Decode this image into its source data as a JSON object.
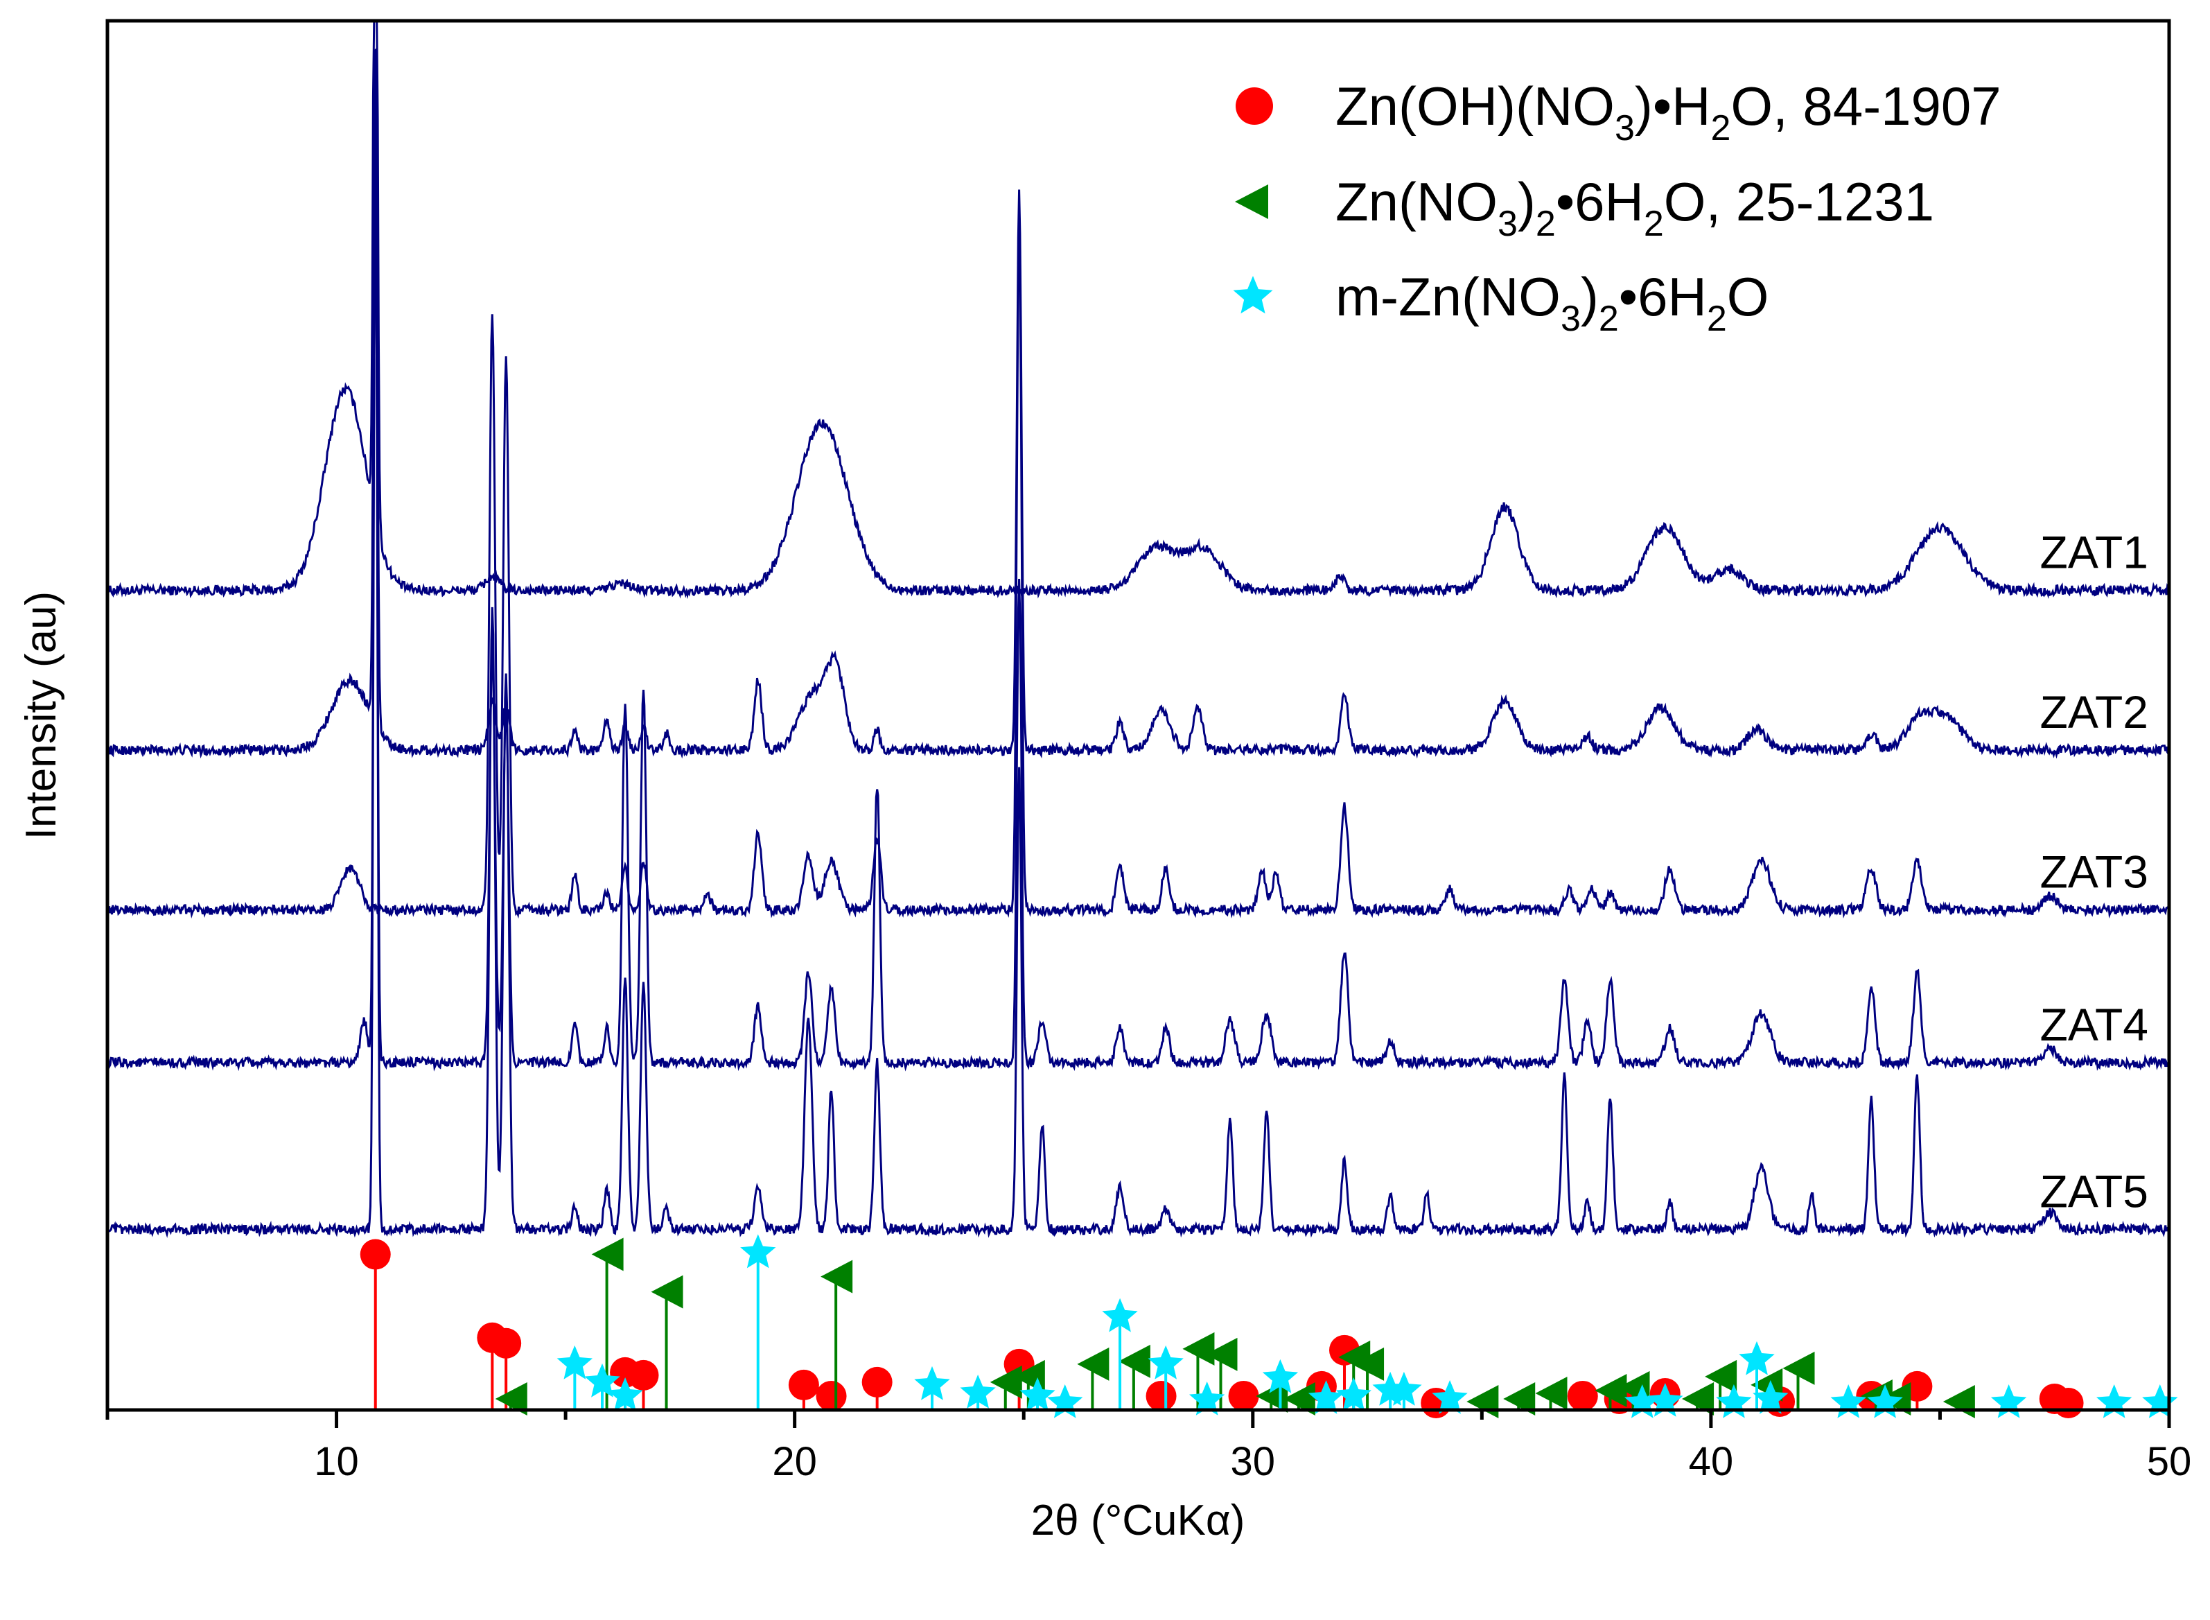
{
  "chart_data": {
    "type": "line",
    "title": "",
    "xlabel": "2θ (°CuKα)",
    "ylabel": "Intensity (au)",
    "xlim": [
      5,
      50
    ],
    "ylim": [
      0,
      10
    ],
    "xticks": [
      10,
      20,
      30,
      40,
      50
    ],
    "grid": false,
    "legend_position": "top-right",
    "colors": {
      "trace": "#000080",
      "zn_oh_no3": "#ff0000",
      "zn_no3_6h2o": "#008000",
      "m_zn_no3": "#00e5ff"
    },
    "legend": [
      {
        "key": "zn_oh_no3",
        "marker": "circle",
        "color": "#ff0000",
        "prefix": "Zn(OH)(NO",
        "sub": "3",
        "suffix1": ")•H",
        "sub2": "2",
        "suffix2": "O, 84-1907"
      },
      {
        "key": "zn_no3_6h2o",
        "marker": "triangle-left",
        "color": "#008000",
        "prefix": "Zn(NO",
        "sub": "3",
        "suffix1": ")",
        "sub2": "2",
        "suffix2": "•6H",
        "sub3": "2",
        "suffix3": "O, 25-1231"
      },
      {
        "key": "m_zn_no3",
        "marker": "star",
        "color": "#00e5ff",
        "prefix": "m-Zn(NO",
        "sub": "3",
        "suffix1": ")",
        "sub2": "2",
        "suffix2": "•6H",
        "sub3": "2",
        "suffix3": "O"
      }
    ],
    "series": [
      {
        "name": "ZAT1",
        "baseline": 5.9,
        "peaks": [
          [
            10.2,
            1.45,
            0.45
          ],
          [
            10.85,
            6.5,
            0.04
          ],
          [
            13.4,
            0.1,
            0.15
          ],
          [
            16.2,
            0.05,
            0.2
          ],
          [
            20.6,
            1.2,
            0.55
          ],
          [
            27.9,
            0.3,
            0.4
          ],
          [
            28.9,
            0.3,
            0.4
          ],
          [
            31.9,
            0.1,
            0.1
          ],
          [
            35.5,
            0.6,
            0.3
          ],
          [
            39.0,
            0.45,
            0.4
          ],
          [
            40.4,
            0.15,
            0.3
          ],
          [
            45.0,
            0.45,
            0.5
          ]
        ]
      },
      {
        "name": "ZAT2",
        "baseline": 4.75,
        "peaks": [
          [
            10.3,
            0.5,
            0.4
          ],
          [
            10.85,
            5.0,
            0.04
          ],
          [
            13.4,
            0.35,
            0.08
          ],
          [
            13.7,
            0.3,
            0.08
          ],
          [
            15.2,
            0.15,
            0.06
          ],
          [
            15.9,
            0.22,
            0.06
          ],
          [
            16.3,
            0.18,
            0.06
          ],
          [
            16.7,
            0.18,
            0.06
          ],
          [
            17.2,
            0.12,
            0.06
          ],
          [
            19.2,
            0.5,
            0.08
          ],
          [
            20.4,
            0.4,
            0.3
          ],
          [
            20.9,
            0.55,
            0.2
          ],
          [
            21.8,
            0.15,
            0.06
          ],
          [
            24.9,
            4.0,
            0.05
          ],
          [
            27.1,
            0.2,
            0.08
          ],
          [
            28.0,
            0.28,
            0.2
          ],
          [
            28.8,
            0.3,
            0.1
          ],
          [
            32.0,
            0.4,
            0.08
          ],
          [
            35.5,
            0.35,
            0.25
          ],
          [
            37.3,
            0.1,
            0.1
          ],
          [
            38.9,
            0.3,
            0.3
          ],
          [
            41.0,
            0.15,
            0.2
          ],
          [
            43.5,
            0.12,
            0.12
          ],
          [
            44.6,
            0.25,
            0.3
          ],
          [
            45.2,
            0.2,
            0.3
          ]
        ]
      },
      {
        "name": "ZAT3",
        "baseline": 3.6,
        "peaks": [
          [
            10.3,
            0.3,
            0.2
          ],
          [
            13.4,
            4.3,
            0.06
          ],
          [
            13.7,
            4.0,
            0.06
          ],
          [
            15.2,
            0.25,
            0.06
          ],
          [
            15.9,
            0.12,
            0.06
          ],
          [
            16.3,
            0.3,
            0.06
          ],
          [
            16.7,
            0.35,
            0.06
          ],
          [
            18.1,
            0.1,
            0.08
          ],
          [
            19.2,
            0.55,
            0.08
          ],
          [
            20.3,
            0.4,
            0.1
          ],
          [
            20.8,
            0.35,
            0.15
          ],
          [
            21.8,
            0.5,
            0.08
          ],
          [
            24.9,
            5.0,
            0.05
          ],
          [
            27.1,
            0.3,
            0.08
          ],
          [
            28.1,
            0.3,
            0.08
          ],
          [
            30.2,
            0.28,
            0.08
          ],
          [
            30.5,
            0.25,
            0.08
          ],
          [
            32.0,
            0.75,
            0.08
          ],
          [
            34.3,
            0.15,
            0.08
          ],
          [
            36.9,
            0.15,
            0.08
          ],
          [
            37.4,
            0.15,
            0.08
          ],
          [
            37.8,
            0.12,
            0.08
          ],
          [
            39.1,
            0.3,
            0.1
          ],
          [
            41.1,
            0.35,
            0.2
          ],
          [
            43.5,
            0.3,
            0.1
          ],
          [
            44.5,
            0.35,
            0.1
          ],
          [
            47.4,
            0.1,
            0.15
          ]
        ]
      },
      {
        "name": "ZAT4",
        "baseline": 2.5,
        "peaks": [
          [
            10.6,
            0.3,
            0.08
          ],
          [
            10.85,
            6.5,
            0.04
          ],
          [
            13.4,
            3.0,
            0.06
          ],
          [
            13.7,
            2.6,
            0.06
          ],
          [
            15.2,
            0.3,
            0.06
          ],
          [
            15.9,
            0.25,
            0.06
          ],
          [
            16.3,
            2.6,
            0.06
          ],
          [
            16.7,
            2.7,
            0.06
          ],
          [
            19.2,
            0.4,
            0.08
          ],
          [
            20.3,
            0.65,
            0.08
          ],
          [
            20.8,
            0.55,
            0.08
          ],
          [
            21.8,
            2.0,
            0.06
          ],
          [
            24.9,
            3.5,
            0.05
          ],
          [
            25.4,
            0.3,
            0.08
          ],
          [
            27.1,
            0.25,
            0.08
          ],
          [
            28.1,
            0.25,
            0.08
          ],
          [
            29.5,
            0.3,
            0.1
          ],
          [
            30.3,
            0.35,
            0.1
          ],
          [
            32.0,
            0.8,
            0.08
          ],
          [
            33.0,
            0.15,
            0.08
          ],
          [
            36.8,
            0.6,
            0.08
          ],
          [
            37.3,
            0.3,
            0.08
          ],
          [
            37.8,
            0.6,
            0.08
          ],
          [
            39.1,
            0.25,
            0.1
          ],
          [
            41.1,
            0.35,
            0.2
          ],
          [
            43.5,
            0.55,
            0.08
          ],
          [
            44.5,
            0.65,
            0.08
          ],
          [
            47.4,
            0.1,
            0.15
          ]
        ]
      },
      {
        "name": "ZAT5",
        "baseline": 1.3,
        "peaks": [
          [
            10.85,
            8.0,
            0.04
          ],
          [
            13.4,
            4.5,
            0.06
          ],
          [
            13.7,
            4.0,
            0.06
          ],
          [
            15.2,
            0.15,
            0.06
          ],
          [
            15.9,
            0.3,
            0.06
          ],
          [
            16.3,
            1.8,
            0.06
          ],
          [
            16.7,
            1.8,
            0.06
          ],
          [
            17.2,
            0.15,
            0.06
          ],
          [
            19.2,
            0.3,
            0.08
          ],
          [
            20.3,
            1.5,
            0.08
          ],
          [
            20.8,
            1.0,
            0.06
          ],
          [
            21.8,
            1.2,
            0.06
          ],
          [
            24.9,
            3.3,
            0.05
          ],
          [
            25.4,
            0.75,
            0.06
          ],
          [
            27.1,
            0.3,
            0.08
          ],
          [
            28.1,
            0.15,
            0.08
          ],
          [
            29.5,
            0.8,
            0.06
          ],
          [
            30.3,
            0.85,
            0.06
          ],
          [
            32.0,
            0.5,
            0.06
          ],
          [
            33.0,
            0.25,
            0.06
          ],
          [
            33.8,
            0.25,
            0.06
          ],
          [
            36.8,
            1.1,
            0.06
          ],
          [
            37.3,
            0.2,
            0.06
          ],
          [
            37.8,
            0.95,
            0.06
          ],
          [
            39.1,
            0.2,
            0.06
          ],
          [
            41.1,
            0.45,
            0.15
          ],
          [
            42.2,
            0.25,
            0.06
          ],
          [
            43.5,
            0.95,
            0.06
          ],
          [
            44.5,
            1.1,
            0.06
          ],
          [
            47.4,
            0.12,
            0.15
          ]
        ]
      }
    ],
    "reference_markers": {
      "zn_oh_no3": [
        [
          10.85,
          1.12
        ],
        [
          13.4,
          0.52
        ],
        [
          13.7,
          0.48
        ],
        [
          16.3,
          0.27
        ],
        [
          16.7,
          0.25
        ],
        [
          20.2,
          0.18
        ],
        [
          20.8,
          0.1
        ],
        [
          21.8,
          0.2
        ],
        [
          24.9,
          0.33
        ],
        [
          28.0,
          0.1
        ],
        [
          29.8,
          0.1
        ],
        [
          31.5,
          0.17
        ],
        [
          32.0,
          0.43
        ],
        [
          34.0,
          0.05
        ],
        [
          37.2,
          0.1
        ],
        [
          38.0,
          0.08
        ],
        [
          39.0,
          0.12
        ],
        [
          41.5,
          0.06
        ],
        [
          43.5,
          0.1
        ],
        [
          44.5,
          0.17
        ],
        [
          47.5,
          0.08
        ],
        [
          47.8,
          0.05
        ]
      ],
      "zn_no3_6h2o": [
        [
          13.8,
          0.08
        ],
        [
          15.9,
          1.12
        ],
        [
          17.2,
          0.85
        ],
        [
          20.9,
          0.96
        ],
        [
          24.6,
          0.2
        ],
        [
          25.1,
          0.24
        ],
        [
          26.5,
          0.33
        ],
        [
          27.4,
          0.35
        ],
        [
          28.8,
          0.44
        ],
        [
          29.3,
          0.4
        ],
        [
          30.4,
          0.1
        ],
        [
          31.0,
          0.08
        ],
        [
          32.2,
          0.38
        ],
        [
          32.5,
          0.33
        ],
        [
          35.0,
          0.06
        ],
        [
          35.8,
          0.08
        ],
        [
          36.5,
          0.12
        ],
        [
          37.8,
          0.14
        ],
        [
          38.3,
          0.16
        ],
        [
          39.7,
          0.08
        ],
        [
          40.2,
          0.24
        ],
        [
          41.2,
          0.18
        ],
        [
          41.9,
          0.3
        ],
        [
          43.6,
          0.1
        ],
        [
          44.0,
          0.08
        ],
        [
          45.4,
          0.06
        ]
      ],
      "m_zn_no3": [
        [
          15.2,
          0.33
        ],
        [
          15.8,
          0.2
        ],
        [
          16.3,
          0.1
        ],
        [
          19.2,
          1.13
        ],
        [
          23.0,
          0.18
        ],
        [
          24.0,
          0.12
        ],
        [
          25.3,
          0.1
        ],
        [
          25.9,
          0.05
        ],
        [
          27.1,
          0.67
        ],
        [
          28.1,
          0.33
        ],
        [
          29.0,
          0.07
        ],
        [
          30.6,
          0.23
        ],
        [
          31.6,
          0.08
        ],
        [
          32.2,
          0.1
        ],
        [
          33.0,
          0.14
        ],
        [
          33.3,
          0.14
        ],
        [
          34.3,
          0.08
        ],
        [
          38.5,
          0.05
        ],
        [
          39.0,
          0.06
        ],
        [
          40.5,
          0.05
        ],
        [
          41.0,
          0.36
        ],
        [
          41.3,
          0.08
        ],
        [
          43.0,
          0.05
        ],
        [
          43.8,
          0.05
        ],
        [
          46.5,
          0.05
        ],
        [
          48.8,
          0.05
        ],
        [
          49.8,
          0.05
        ]
      ]
    }
  }
}
